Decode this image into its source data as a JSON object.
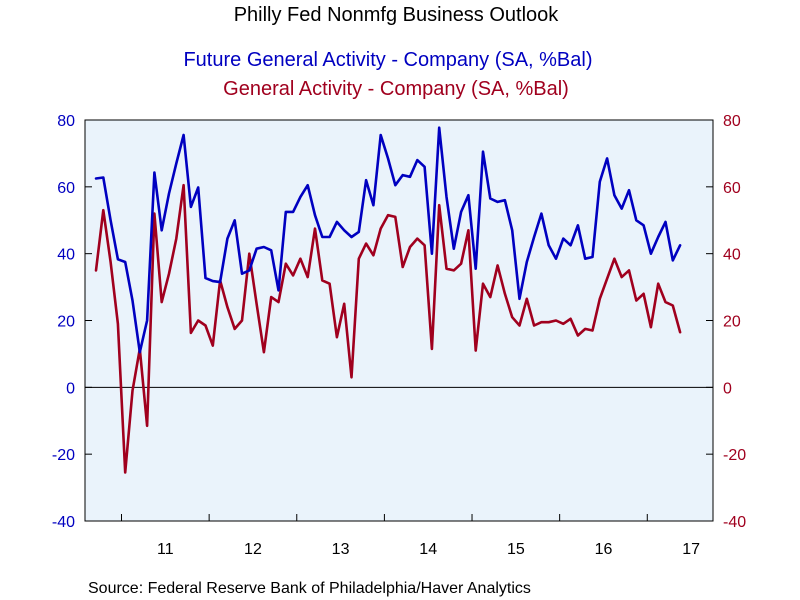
{
  "chart_data": {
    "type": "line",
    "title": "Philly Fed Nonmfg Business Outlook",
    "subtitle_1": "Future General Activity - Company (SA, %Bal)",
    "subtitle_2": "General Activity - Company (SA, %Bal)",
    "source": "Source:  Federal Reserve Bank of Philadelphia/Haver Analytics",
    "ylim": [
      -40,
      80
    ],
    "y_ticks": [
      "80",
      "60",
      "40",
      "20",
      "0",
      "-20",
      "-40"
    ],
    "y_tick_values": [
      80,
      60,
      40,
      20,
      0,
      -20,
      -40
    ],
    "x_labels": [
      "11",
      "12",
      "13",
      "14",
      "15",
      "16",
      "17"
    ],
    "x_label_years": [
      2011,
      2012,
      2013,
      2014,
      2015,
      2016,
      2017
    ],
    "x_start": "2010-08",
    "x_end": "2017-10",
    "colors": {
      "future": "#0000c0",
      "current": "#a0001e",
      "plot_bg": "#eaf3fb",
      "axis_left": "#0000c0",
      "axis_right": "#a0001e"
    },
    "series": [
      {
        "name": "Future General Activity - Company (SA, %Bal)",
        "axis": "left",
        "start": "2010-09",
        "values": [
          62.5,
          62.8,
          50,
          38.3,
          37.5,
          26,
          10.5,
          20,
          64.3,
          47,
          58,
          67,
          75.5,
          54,
          59.8,
          32.7,
          31.8,
          31.5,
          44.5,
          50,
          34,
          35,
          41.5,
          42,
          41,
          29,
          52.5,
          52.5,
          57,
          60.5,
          51.5,
          45,
          45,
          49.5,
          47,
          45,
          46.5,
          62,
          54.5,
          75.5,
          68.5,
          60.5,
          63.5,
          63,
          68,
          66,
          40,
          77.7,
          57,
          41.5,
          52.5,
          57.5,
          35.5,
          70.5,
          56.5,
          55.5,
          56,
          47,
          26.5,
          37.5,
          45,
          52,
          42.5,
          38.5,
          44.5,
          42.5,
          48.5,
          38.5,
          39,
          61.5,
          68.5,
          57.5,
          53.5,
          59,
          50,
          48.5,
          40,
          45,
          49.5,
          38,
          42.5
        ]
      },
      {
        "name": "General Activity - Company (SA, %Bal)",
        "axis": "right",
        "start": "2010-09",
        "values": [
          35,
          53,
          37.5,
          19,
          -25.5,
          -1,
          11.5,
          -11.5,
          52,
          25.5,
          34,
          44.5,
          60.5,
          16.3,
          20,
          18.5,
          12.5,
          32,
          24,
          17.5,
          20,
          40,
          25,
          10.5,
          27,
          25.5,
          37,
          33.5,
          38.5,
          33,
          47.5,
          32,
          31,
          15,
          25,
          3,
          38.5,
          43,
          39.5,
          47.5,
          51.5,
          51,
          36,
          42,
          44.5,
          42.5,
          11.5,
          54.5,
          35.5,
          35,
          37,
          47,
          11,
          31,
          27,
          36.5,
          28,
          21,
          18.5,
          26.5,
          18.5,
          19.5,
          19.5,
          20,
          19,
          20.5,
          15.5,
          17.5,
          17,
          26.5,
          32.5,
          38.5,
          33,
          35,
          26,
          28,
          18,
          31,
          25.5,
          24.5,
          16.5
        ]
      }
    ]
  }
}
